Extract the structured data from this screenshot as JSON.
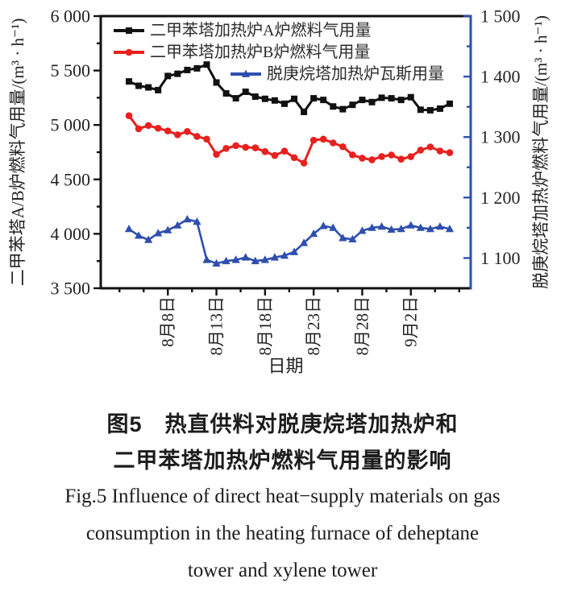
{
  "figure": {
    "caption_zh_line1": "图5　热直供料对脱庚烷塔加热炉和",
    "caption_zh_line2": "二甲苯塔加热炉燃料气用量的影响",
    "caption_en_line1": "Fig.5  Influence of direct heat−supply materials on gas",
    "caption_en_line2": "consumption in the heating furnace of deheptane",
    "caption_en_line3": "tower and xylene tower"
  },
  "chart_data": {
    "type": "line",
    "xlabel": "日期",
    "x_tick_labels": [
      "8月8日",
      "8月13日",
      "8月18日",
      "8月23日",
      "8月28日",
      "9月2日"
    ],
    "x_tick_indices": [
      4,
      9,
      14,
      19,
      24,
      29
    ],
    "n_points": 34,
    "grid": false,
    "legend_position": "top-inside",
    "left_axis": {
      "label": "二甲苯塔A/B炉燃料气用量/(m³ · h⁻¹)",
      "ylim": [
        3500,
        6000
      ],
      "major_step": 500,
      "minor_step": 250,
      "tick_labels": [
        "3 500",
        "4 000",
        "4 500",
        "5 000",
        "5 500",
        "6 000"
      ],
      "color": "#111111"
    },
    "right_axis": {
      "label": "脱庚烷塔加热炉燃料气用量/(m³ · h⁻¹)",
      "ylim": [
        1050,
        1500
      ],
      "major_step": 100,
      "minor_step": 50,
      "tick_labels": [
        "1 100",
        "1 200",
        "1 300",
        "1 400",
        "1 500"
      ],
      "color": "#2e4fae"
    },
    "series": [
      {
        "name": "二甲苯塔加热炉A炉燃料气用量",
        "axis": "left",
        "color": "#111111",
        "marker": "square",
        "values": [
          5400,
          5360,
          5345,
          5320,
          5450,
          5470,
          5505,
          5520,
          5555,
          5390,
          5290,
          5245,
          5305,
          5260,
          5240,
          5225,
          5195,
          5240,
          5120,
          5245,
          5230,
          5170,
          5145,
          5185,
          5230,
          5210,
          5250,
          5245,
          5230,
          5255,
          5140,
          5135,
          5150,
          5195
        ]
      },
      {
        "name": "二甲苯塔加热炉B炉燃料气用量",
        "axis": "left",
        "color": "#e8201e",
        "marker": "circle",
        "values": [
          5085,
          4965,
          4995,
          4970,
          4945,
          4910,
          4940,
          4895,
          4870,
          4730,
          4785,
          4810,
          4795,
          4790,
          4755,
          4720,
          4760,
          4700,
          4650,
          4860,
          4870,
          4835,
          4800,
          4725,
          4695,
          4680,
          4710,
          4724,
          4686,
          4709,
          4769,
          4798,
          4761,
          4746
        ]
      },
      {
        "name": "脱庚烷塔加热炉瓦斯用量",
        "axis": "right",
        "color": "#2e4fae",
        "marker": "triangle",
        "values": [
          1148,
          1137,
          1130,
          1141,
          1146,
          1154,
          1164,
          1160,
          1097,
          1091,
          1095,
          1097,
          1101,
          1095,
          1097,
          1101,
          1104,
          1110,
          1125,
          1140,
          1153,
          1150,
          1133,
          1131,
          1145,
          1150,
          1152,
          1147,
          1148,
          1154,
          1150,
          1148,
          1152,
          1148
        ]
      }
    ]
  }
}
